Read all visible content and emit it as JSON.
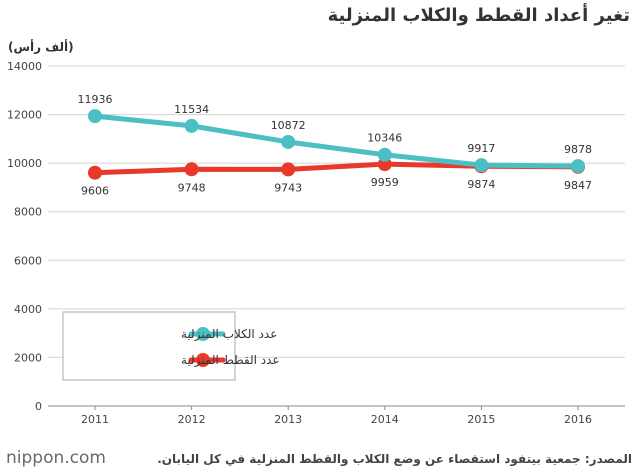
{
  "chart_data": {
    "type": "line",
    "title": "تغير أعداد القطط والكلاب المنزلية",
    "ylabel": "(ألف رأس)",
    "xlabel": "",
    "x": [
      "2011",
      "2012",
      "2013",
      "2014",
      "2015",
      "2016"
    ],
    "ylim": [
      0,
      14000
    ],
    "yticks": [
      0,
      2000,
      4000,
      6000,
      8000,
      10000,
      12000,
      14000
    ],
    "grid": "horizontal",
    "legend_position": "bottom-left",
    "series": [
      {
        "name": "عدد الكلاب المنزلية",
        "color": "#4bbfc3",
        "values": [
          11936,
          11534,
          10872,
          10346,
          9917,
          9878
        ],
        "labels_position": "above"
      },
      {
        "name": "عدد القطط المنزلية",
        "color": "#e8392b",
        "values": [
          9606,
          9748,
          9743,
          9959,
          9874,
          9847
        ],
        "labels_position": "below"
      }
    ]
  },
  "footer": {
    "logo": "nippon.com",
    "source": "المصدر: جمعية بيتفود استقصاء عن وضع الكلاب والقطط المنزلية في كل اليابان."
  }
}
